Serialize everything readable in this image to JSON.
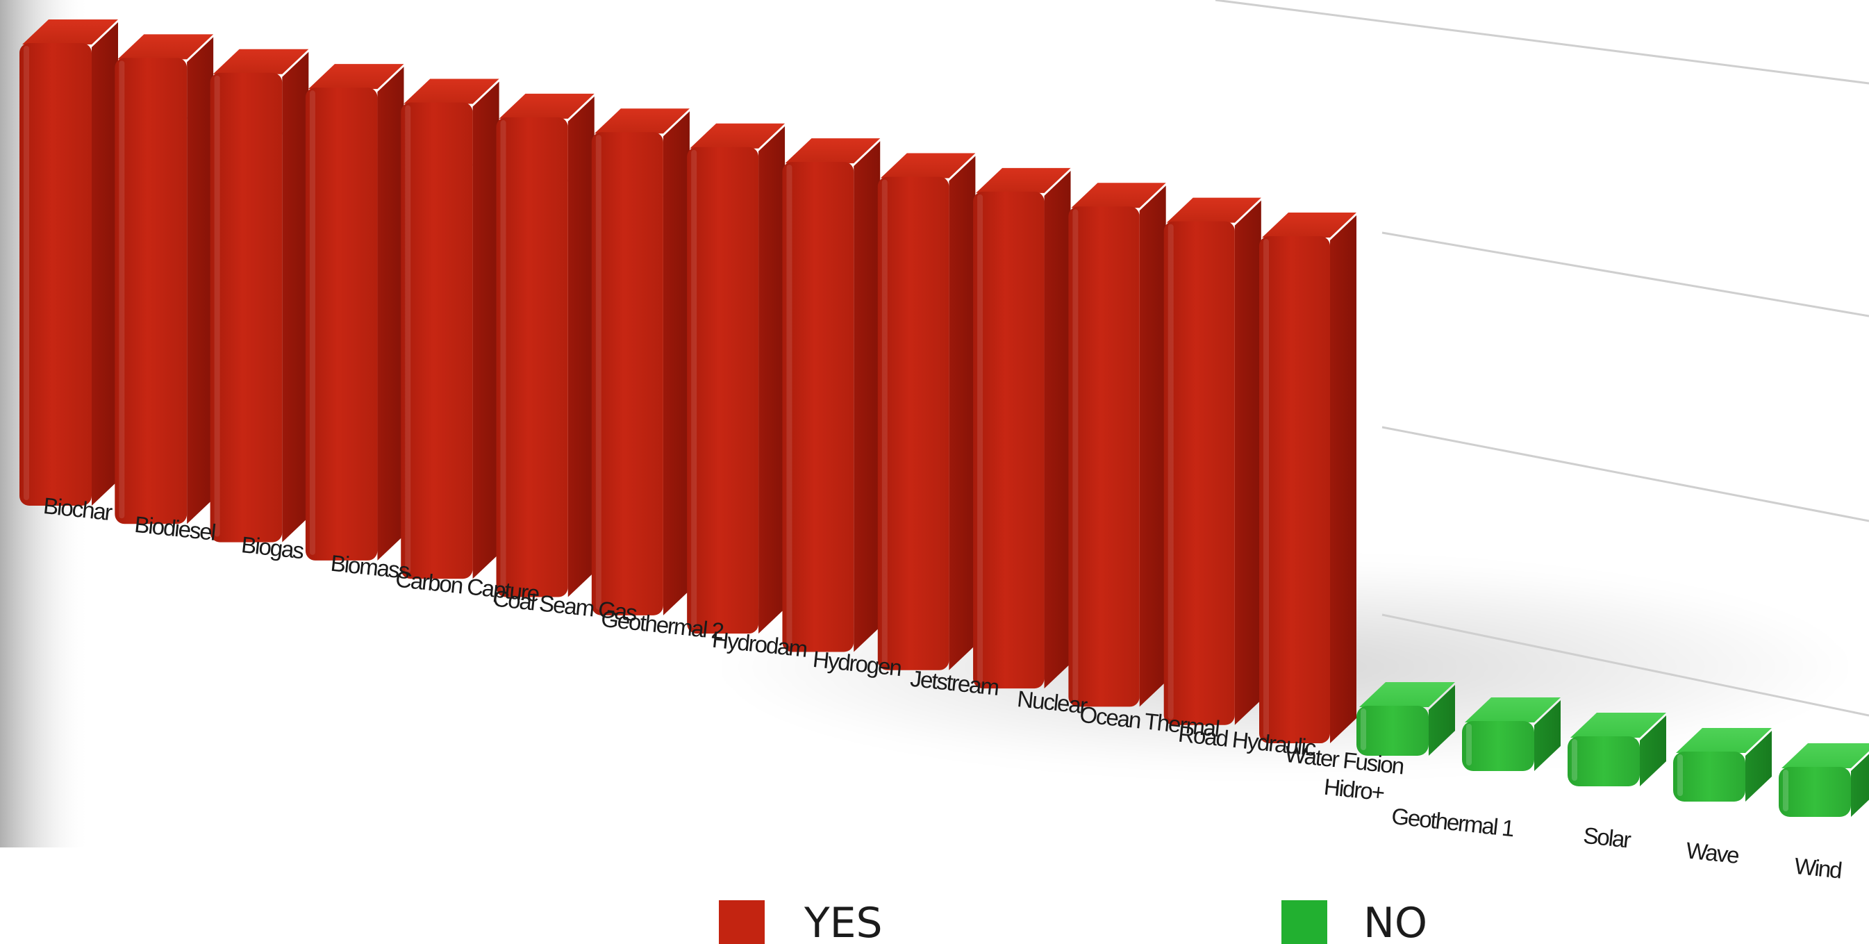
{
  "chart_data": {
    "type": "bar",
    "title": "",
    "xlabel": "",
    "ylabel": "",
    "categories": [
      "Biochar",
      "Biodiesel",
      "Biogas",
      "Biomass",
      "Carbon Capture",
      "Coal Seam Gas",
      "Geothermal 2",
      "Hydrodam",
      "Hydrogen",
      "Jetstream",
      "Nuclear",
      "Ocean Thermal",
      "Road Hydraulic",
      "Water Fusion",
      "Hidro+",
      "Geothermal 1",
      "Solar",
      "Wave",
      "Wind"
    ],
    "series": [
      {
        "name": "YES",
        "color": "#c32411",
        "values": [
          1,
          1,
          1,
          1,
          1,
          1,
          1,
          1,
          1,
          1,
          1,
          1,
          1,
          1,
          0,
          0,
          0,
          0,
          0
        ]
      },
      {
        "name": "NO",
        "color": "#22b030",
        "values": [
          0,
          0,
          0,
          0,
          0,
          0,
          0,
          0,
          0,
          0,
          0,
          0,
          0,
          0,
          1,
          1,
          1,
          1,
          1
        ]
      }
    ],
    "yes_bar_value": 1,
    "no_bar_value": 0.08,
    "grid": true,
    "legend_position": "bottom",
    "style": "3d"
  }
}
